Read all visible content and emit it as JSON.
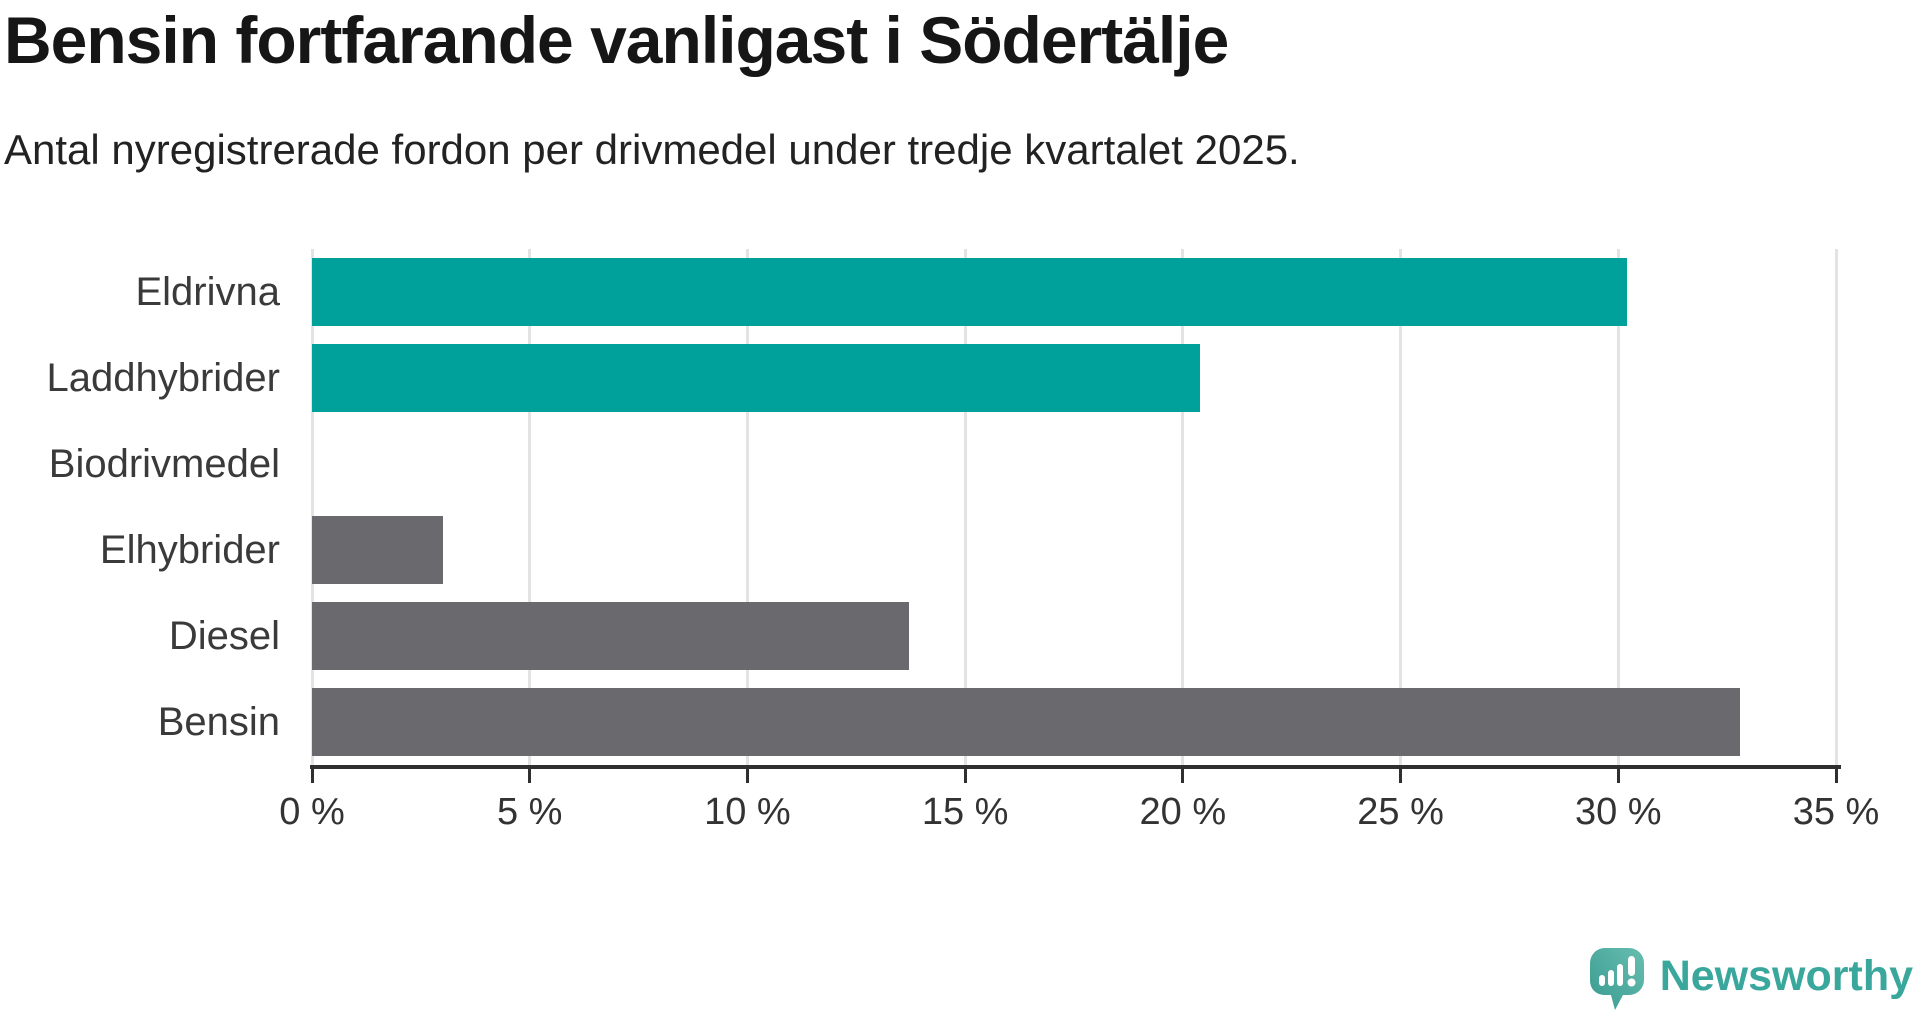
{
  "header": {
    "title": "Bensin fortfarande vanligast i Södertälje",
    "subtitle": "Antal nyregistrerade fordon per drivmedel under tredje kvartalet 2025."
  },
  "chart_data": {
    "type": "bar",
    "orientation": "horizontal",
    "title": "Bensin fortfarande vanligast i Södertälje",
    "subtitle": "Antal nyregistrerade fordon per drivmedel under tredje kvartalet 2025.",
    "categories": [
      "Eldrivna",
      "Laddhybrider",
      "Biodrivmedel",
      "Elhybrider",
      "Diesel",
      "Bensin"
    ],
    "values": [
      30.2,
      20.4,
      0,
      3.0,
      13.7,
      32.8
    ],
    "unit": "%",
    "xlabel": "",
    "ylabel": "",
    "xlim": [
      0,
      35
    ],
    "x_ticks": [
      0,
      5,
      10,
      15,
      20,
      25,
      30,
      35
    ],
    "x_tick_labels": [
      "0 %",
      "5 %",
      "10 %",
      "15 %",
      "20 %",
      "25 %",
      "30 %",
      "35 %"
    ],
    "bar_color_keys": [
      "highlight",
      "highlight",
      "highlight",
      "default",
      "default",
      "default"
    ],
    "colors": {
      "highlight": "#00a19a",
      "default": "#6a6a6e"
    },
    "grid": "vertical-gridlines-on",
    "legend": "none"
  },
  "footer": {
    "brand": "Newsworthy",
    "logo_icon": "newsworthy-speech-bubble-bar-chart-icon",
    "brand_color": "#3aa79c"
  }
}
